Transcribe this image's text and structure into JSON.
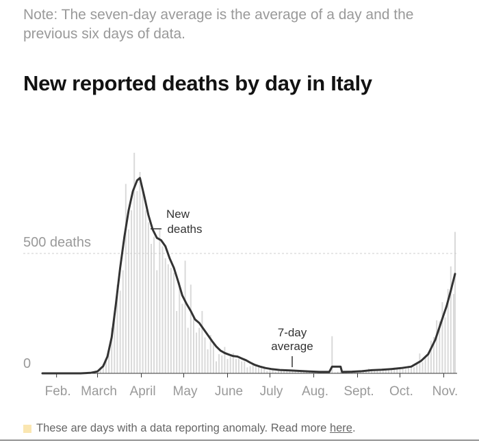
{
  "note": "Note: The seven-day average is the average of a day and the previous six days of data.",
  "title": "New reported deaths by day in Italy",
  "footer": {
    "text": "These are days with a data reporting anomaly. Read more",
    "link": "here",
    "end": ".",
    "swatch_color": "#fae6b1"
  },
  "chart_data": {
    "type": "bar",
    "title": "New reported deaths by day in Italy",
    "x_axis": {
      "range": [
        "2020-01-22",
        "2020-11-09"
      ],
      "ticks": [
        {
          "label": "Feb.",
          "date": "2020-02-01"
        },
        {
          "label": "March",
          "date": "2020-03-01"
        },
        {
          "label": "April",
          "date": "2020-04-01"
        },
        {
          "label": "May",
          "date": "2020-05-01"
        },
        {
          "label": "June",
          "date": "2020-06-01"
        },
        {
          "label": "July",
          "date": "2020-07-01"
        },
        {
          "label": "Aug.",
          "date": "2020-08-01"
        },
        {
          "label": "Sept.",
          "date": "2020-09-01"
        },
        {
          "label": "Oct.",
          "date": "2020-10-01"
        },
        {
          "label": "Nov.",
          "date": "2020-11-01"
        }
      ]
    },
    "y_axis": {
      "range": [
        0,
        1000
      ],
      "gridlines": [
        {
          "value": 500,
          "label": "500 deaths"
        }
      ],
      "baseline_label": "0"
    },
    "series": [
      {
        "name": "New deaths",
        "kind": "daily bars",
        "color": "#d9d9d9",
        "points": [
          [
            "2020-02-21",
            1
          ],
          [
            "2020-02-25",
            4
          ],
          [
            "2020-02-28",
            8
          ],
          [
            "2020-03-01",
            6
          ],
          [
            "2020-03-03",
            25
          ],
          [
            "2020-03-05",
            40
          ],
          [
            "2020-03-07",
            50
          ],
          [
            "2020-03-09",
            100
          ],
          [
            "2020-03-11",
            190
          ],
          [
            "2020-03-13",
            250
          ],
          [
            "2020-03-15",
            370
          ],
          [
            "2020-03-17",
            345
          ],
          [
            "2020-03-19",
            430
          ],
          [
            "2020-03-21",
            790
          ],
          [
            "2020-03-23",
            600
          ],
          [
            "2020-03-25",
            680
          ],
          [
            "2020-03-27",
            920
          ],
          [
            "2020-03-29",
            760
          ],
          [
            "2020-03-31",
            840
          ],
          [
            "2020-04-02",
            760
          ],
          [
            "2020-04-04",
            680
          ],
          [
            "2020-04-06",
            630
          ],
          [
            "2020-04-08",
            540
          ],
          [
            "2020-04-10",
            570
          ],
          [
            "2020-04-12",
            430
          ],
          [
            "2020-04-14",
            600
          ],
          [
            "2020-04-16",
            530
          ],
          [
            "2020-04-18",
            480
          ],
          [
            "2020-04-20",
            455
          ],
          [
            "2020-04-22",
            440
          ],
          [
            "2020-04-24",
            420
          ],
          [
            "2020-04-26",
            260
          ],
          [
            "2020-04-28",
            380
          ],
          [
            "2020-04-30",
            290
          ],
          [
            "2020-05-02",
            470
          ],
          [
            "2020-05-04",
            190
          ],
          [
            "2020-05-06",
            370
          ],
          [
            "2020-05-08",
            240
          ],
          [
            "2020-05-10",
            170
          ],
          [
            "2020-05-12",
            190
          ],
          [
            "2020-05-14",
            260
          ],
          [
            "2020-05-16",
            150
          ],
          [
            "2020-05-18",
            100
          ],
          [
            "2020-05-20",
            160
          ],
          [
            "2020-05-22",
            130
          ],
          [
            "2020-05-24",
            50
          ],
          [
            "2020-05-26",
            80
          ],
          [
            "2020-05-28",
            75
          ],
          [
            "2020-05-30",
            110
          ],
          [
            "2020-06-01",
            60
          ],
          [
            "2020-06-03",
            70
          ],
          [
            "2020-06-05",
            85
          ],
          [
            "2020-06-07",
            60
          ],
          [
            "2020-06-09",
            60
          ],
          [
            "2020-06-11",
            50
          ],
          [
            "2020-06-13",
            50
          ],
          [
            "2020-06-15",
            25
          ],
          [
            "2020-06-17",
            30
          ],
          [
            "2020-06-19",
            40
          ],
          [
            "2020-06-21",
            30
          ],
          [
            "2020-06-23",
            25
          ],
          [
            "2020-06-25",
            25
          ],
          [
            "2020-06-27",
            20
          ],
          [
            "2020-06-29",
            10
          ],
          [
            "2020-07-01",
            20
          ],
          [
            "2020-07-03",
            15
          ],
          [
            "2020-07-05",
            8
          ],
          [
            "2020-07-07",
            15
          ],
          [
            "2020-07-09",
            12
          ],
          [
            "2020-07-11",
            10
          ],
          [
            "2020-07-13",
            12
          ],
          [
            "2020-07-15",
            15
          ],
          [
            "2020-07-17",
            10
          ],
          [
            "2020-07-19",
            8
          ],
          [
            "2020-07-21",
            10
          ],
          [
            "2020-07-23",
            10
          ],
          [
            "2020-07-25",
            5
          ],
          [
            "2020-07-27",
            8
          ],
          [
            "2020-07-29",
            6
          ],
          [
            "2020-07-31",
            6
          ],
          [
            "2020-08-02",
            4
          ],
          [
            "2020-08-04",
            6
          ],
          [
            "2020-08-06",
            8
          ],
          [
            "2020-08-08",
            5
          ],
          [
            "2020-08-10",
            4
          ],
          [
            "2020-08-12",
            10
          ],
          [
            "2020-08-14",
            155
          ],
          [
            "2020-08-16",
            4
          ],
          [
            "2020-08-18",
            7
          ],
          [
            "2020-08-20",
            6
          ],
          [
            "2020-08-22",
            6
          ],
          [
            "2020-08-24",
            7
          ],
          [
            "2020-08-26",
            9
          ],
          [
            "2020-08-28",
            6
          ],
          [
            "2020-08-30",
            6
          ],
          [
            "2020-09-01",
            10
          ],
          [
            "2020-09-03",
            9
          ],
          [
            "2020-09-05",
            12
          ],
          [
            "2020-09-07",
            14
          ],
          [
            "2020-09-09",
            20
          ],
          [
            "2020-09-11",
            11
          ],
          [
            "2020-09-13",
            15
          ],
          [
            "2020-09-15",
            15
          ],
          [
            "2020-09-17",
            16
          ],
          [
            "2020-09-19",
            18
          ],
          [
            "2020-09-21",
            13
          ],
          [
            "2020-09-23",
            20
          ],
          [
            "2020-09-25",
            18
          ],
          [
            "2020-09-27",
            24
          ],
          [
            "2020-09-29",
            17
          ],
          [
            "2020-10-01",
            24
          ],
          [
            "2020-10-03",
            27
          ],
          [
            "2020-10-05",
            18
          ],
          [
            "2020-10-07",
            31
          ],
          [
            "2020-10-09",
            28
          ],
          [
            "2020-10-11",
            26
          ],
          [
            "2020-10-13",
            39
          ],
          [
            "2020-10-15",
            83
          ],
          [
            "2020-10-17",
            47
          ],
          [
            "2020-10-19",
            73
          ],
          [
            "2020-10-21",
            89
          ],
          [
            "2020-10-23",
            136
          ],
          [
            "2020-10-25",
            151
          ],
          [
            "2020-10-27",
            221
          ],
          [
            "2020-10-29",
            217
          ],
          [
            "2020-10-31",
            297
          ],
          [
            "2020-11-02",
            233
          ],
          [
            "2020-11-04",
            352
          ],
          [
            "2020-11-06",
            446
          ],
          [
            "2020-11-08",
            331
          ],
          [
            "2020-11-09",
            590
          ]
        ]
      },
      {
        "name": "7-day average",
        "kind": "line",
        "color": "#333333",
        "points": [
          [
            "2020-01-22",
            0
          ],
          [
            "2020-02-18",
            0
          ],
          [
            "2020-02-25",
            2
          ],
          [
            "2020-03-01",
            8
          ],
          [
            "2020-03-05",
            30
          ],
          [
            "2020-03-08",
            70
          ],
          [
            "2020-03-11",
            150
          ],
          [
            "2020-03-14",
            290
          ],
          [
            "2020-03-17",
            440
          ],
          [
            "2020-03-20",
            570
          ],
          [
            "2020-03-23",
            680
          ],
          [
            "2020-03-26",
            760
          ],
          [
            "2020-03-29",
            805
          ],
          [
            "2020-03-31",
            815
          ],
          [
            "2020-04-03",
            740
          ],
          [
            "2020-04-06",
            660
          ],
          [
            "2020-04-09",
            600
          ],
          [
            "2020-04-12",
            565
          ],
          [
            "2020-04-15",
            555
          ],
          [
            "2020-04-18",
            530
          ],
          [
            "2020-04-21",
            480
          ],
          [
            "2020-04-24",
            440
          ],
          [
            "2020-04-27",
            385
          ],
          [
            "2020-04-30",
            325
          ],
          [
            "2020-05-03",
            290
          ],
          [
            "2020-05-06",
            260
          ],
          [
            "2020-05-09",
            225
          ],
          [
            "2020-05-12",
            210
          ],
          [
            "2020-05-15",
            185
          ],
          [
            "2020-05-18",
            160
          ],
          [
            "2020-05-21",
            135
          ],
          [
            "2020-05-24",
            112
          ],
          [
            "2020-05-27",
            95
          ],
          [
            "2020-05-30",
            85
          ],
          [
            "2020-06-02",
            78
          ],
          [
            "2020-06-05",
            72
          ],
          [
            "2020-06-08",
            70
          ],
          [
            "2020-06-11",
            62
          ],
          [
            "2020-06-14",
            55
          ],
          [
            "2020-06-17",
            45
          ],
          [
            "2020-06-20",
            36
          ],
          [
            "2020-06-24",
            28
          ],
          [
            "2020-06-28",
            22
          ],
          [
            "2020-07-02",
            18
          ],
          [
            "2020-07-08",
            14
          ],
          [
            "2020-07-15",
            12
          ],
          [
            "2020-07-22",
            10
          ],
          [
            "2020-07-29",
            8
          ],
          [
            "2020-08-05",
            6
          ],
          [
            "2020-08-12",
            6
          ],
          [
            "2020-08-14",
            28
          ],
          [
            "2020-08-20",
            28
          ],
          [
            "2020-08-21",
            6
          ],
          [
            "2020-08-28",
            7
          ],
          [
            "2020-09-04",
            9
          ],
          [
            "2020-09-11",
            13
          ],
          [
            "2020-09-18",
            15
          ],
          [
            "2020-09-25",
            18
          ],
          [
            "2020-10-02",
            22
          ],
          [
            "2020-10-09",
            28
          ],
          [
            "2020-10-16",
            52
          ],
          [
            "2020-10-21",
            80
          ],
          [
            "2020-10-26",
            140
          ],
          [
            "2020-10-30",
            210
          ],
          [
            "2020-11-03",
            280
          ],
          [
            "2020-11-06",
            345
          ],
          [
            "2020-11-09",
            415
          ]
        ]
      }
    ],
    "annotations": [
      {
        "text": [
          "New",
          "deaths"
        ],
        "series": "New deaths"
      },
      {
        "text": [
          "7-day",
          "average"
        ],
        "series": "7-day average"
      }
    ]
  }
}
